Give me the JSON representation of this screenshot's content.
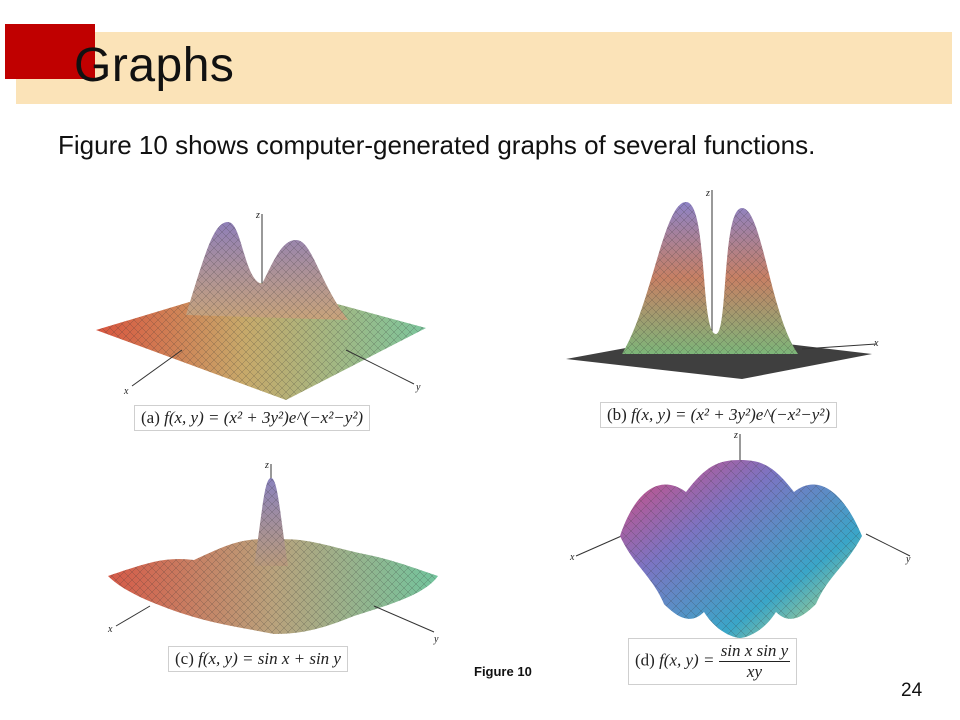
{
  "slide": {
    "title": "Graphs",
    "intro": "Figure 10 shows computer-generated graphs of several functions.",
    "figure_label": "Figure 10",
    "page_number": "24",
    "colors": {
      "accent_red": "#c00000",
      "title_band": "#fbe3b8"
    }
  },
  "graphs": {
    "a": {
      "caption_prefix": "(a)",
      "caption_formula": "f(x, y) = (x² + 3y²)e^(−x²−y²)",
      "axis_x": "x",
      "axis_y": "y",
      "axis_z": "z"
    },
    "b": {
      "caption_prefix": "(b)",
      "caption_formula": "f(x, y) = (x² + 3y²)e^(−x²−y²)",
      "axis_x": "x",
      "axis_z": "z"
    },
    "c": {
      "caption_prefix": "(c)",
      "caption_formula": "f(x, y) = sin x + sin y",
      "axis_x": "x",
      "axis_y": "y",
      "axis_z": "z"
    },
    "d": {
      "caption_prefix": "(d)",
      "caption_lhs": "f(x, y) =",
      "caption_num": "sin x sin y",
      "caption_den": "xy",
      "axis_x": "x",
      "axis_y": "y",
      "axis_z": "z"
    }
  }
}
